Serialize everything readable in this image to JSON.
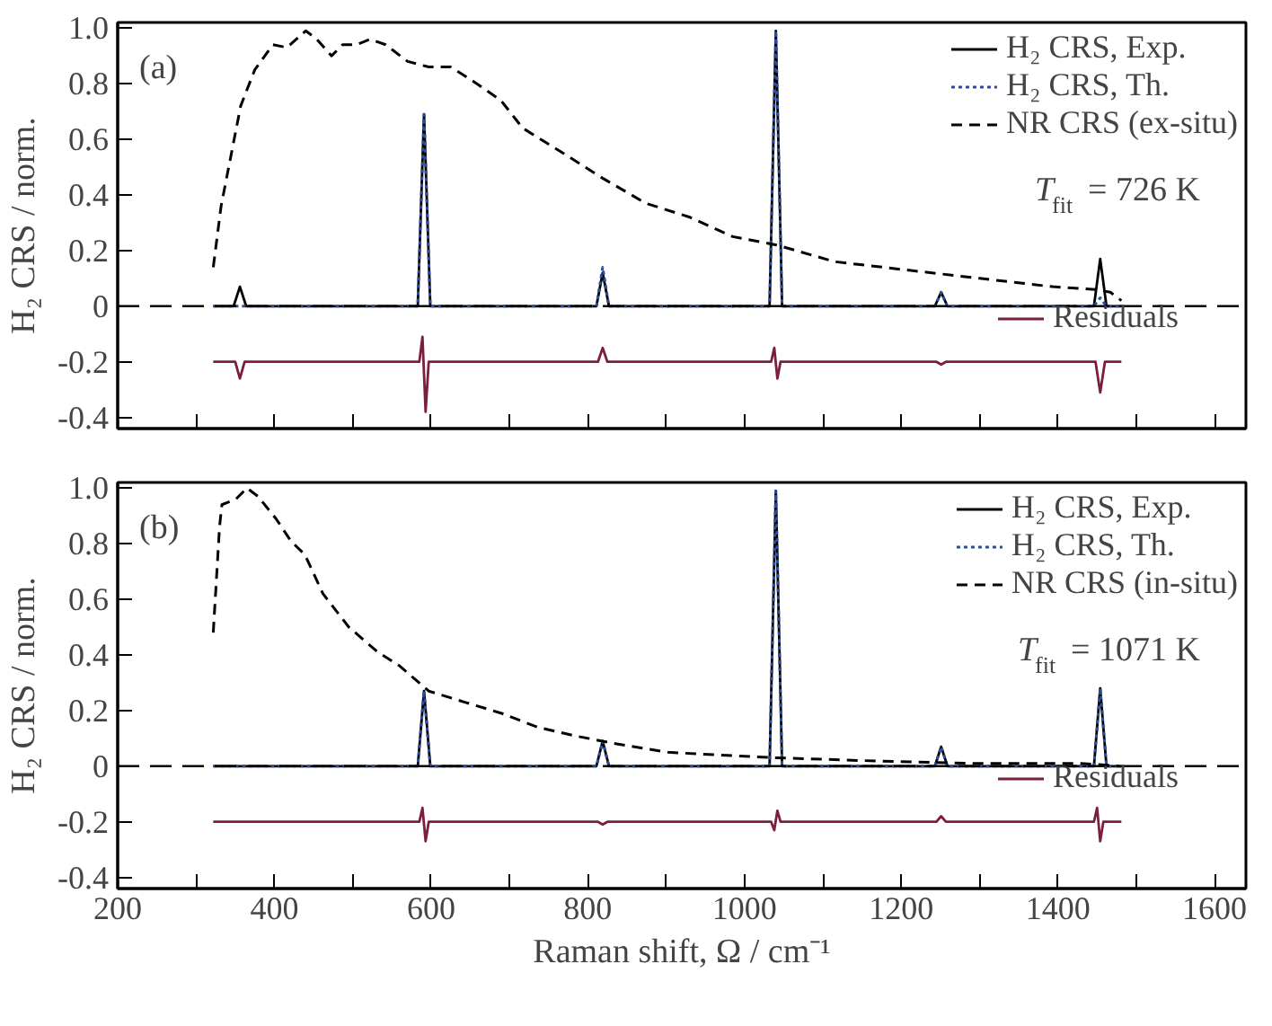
{
  "chart_data": [
    {
      "type": "line",
      "ylabel": "H₂ CRS / norm.",
      "xlim": [
        200,
        1640
      ],
      "ylim": [
        -0.44,
        1.02
      ],
      "tick_labels": "y",
      "legend": "top right",
      "grid": false,
      "xticks": [
        200,
        {
          "value": 300,
          "label": null
        },
        400,
        {
          "value": 500,
          "label": null
        },
        600,
        {
          "value": 700,
          "label": null
        },
        800,
        {
          "value": 900,
          "label": null
        },
        1000,
        {
          "value": 1100,
          "label": null
        },
        1200,
        {
          "value": 1300,
          "label": null
        },
        1400,
        {
          "value": 1500,
          "label": null
        },
        1600
      ],
      "yticks": [
        {
          "value": 1,
          "label": "1.0"
        },
        0.8,
        0.6,
        0.4,
        0.2,
        0,
        -0.2,
        -0.4
      ],
      "annotations": [
        "(a)",
        "T$_{fit}$ = 726 K"
      ],
      "ref_lines": [
        {
          "axis": "y",
          "value": 0,
          "color": "#000000",
          "line_style": "dashed"
        }
      ],
      "series": [
        {
          "name": "H₂ CRS, Exp.",
          "color": "#000000",
          "line_style": "solid",
          "x": [
            322,
            348,
            356,
            364,
            583,
            591,
            599,
            811,
            819,
            827,
            1032,
            1040,
            1048,
            1243,
            1251,
            1259,
            1446,
            1454,
            1462,
            1481
          ],
          "values": [
            0,
            0,
            0.07,
            0,
            0,
            0.69,
            0,
            0,
            0.12,
            0,
            0,
            0.99,
            0,
            0,
            0.05,
            0,
            0,
            0.17,
            0,
            0
          ]
        },
        {
          "name": "H₂ CRS, Th.",
          "color": "#2a4d9c",
          "line_style": "dotted",
          "x": [
            322,
            348,
            356,
            364,
            583,
            591,
            599,
            811,
            819,
            827,
            1032,
            1040,
            1048,
            1243,
            1251,
            1259,
            1446,
            1454,
            1462,
            1481
          ],
          "values": [
            0,
            0,
            0,
            0,
            0,
            0.69,
            0,
            0,
            0.14,
            0,
            0,
            0.99,
            0,
            0,
            0.05,
            0,
            0,
            0.03,
            0,
            0
          ]
        },
        {
          "name": "NR CRS (ex-situ)",
          "color": "#000000",
          "line_style": "dashed",
          "x": [
            322,
            332,
            357,
            375,
            398,
            416,
            440,
            454,
            473,
            487,
            505,
            522,
            542,
            570,
            597,
            625,
            653,
            689,
            717,
            763,
            819,
            874,
            930,
            985,
            1041,
            1115,
            1207,
            1300,
            1393,
            1448,
            1467,
            1481
          ],
          "values": [
            0.14,
            0.36,
            0.72,
            0.85,
            0.94,
            0.93,
            0.99,
            0.96,
            0.9,
            0.94,
            0.94,
            0.96,
            0.94,
            0.88,
            0.86,
            0.86,
            0.81,
            0.74,
            0.64,
            0.56,
            0.46,
            0.37,
            0.32,
            0.25,
            0.22,
            0.16,
            0.13,
            0.1,
            0.07,
            0.06,
            0.05,
            0.02
          ]
        },
        {
          "name": "Residuals",
          "color": "#7b1f3a",
          "line_style": "solid",
          "x": [
            322,
            350,
            356,
            362,
            585,
            589,
            593,
            597,
            813,
            819,
            825,
            1034,
            1038,
            1042,
            1046,
            1245,
            1251,
            1257,
            1448,
            1454,
            1460,
            1481
          ],
          "values": [
            -0.2,
            -0.2,
            -0.26,
            -0.2,
            -0.2,
            -0.11,
            -0.38,
            -0.2,
            -0.2,
            -0.15,
            -0.2,
            -0.2,
            -0.15,
            -0.26,
            -0.2,
            -0.2,
            -0.21,
            -0.2,
            -0.2,
            -0.31,
            -0.2,
            -0.2
          ]
        }
      ]
    },
    {
      "type": "line",
      "xlabel": "Raman shift, Ω / cm⁻¹",
      "ylabel": "H₂ CRS / norm.",
      "xlim": [
        200,
        1640
      ],
      "ylim": [
        -0.44,
        1.02
      ],
      "legend": "top right",
      "grid": false,
      "xticks": [
        200,
        {
          "value": 300,
          "label": null
        },
        400,
        {
          "value": 500,
          "label": null
        },
        600,
        {
          "value": 700,
          "label": null
        },
        800,
        {
          "value": 900,
          "label": null
        },
        1000,
        {
          "value": 1100,
          "label": null
        },
        1200,
        {
          "value": 1300,
          "label": null
        },
        1400,
        {
          "value": 1500,
          "label": null
        },
        1600
      ],
      "yticks": [
        {
          "value": 1,
          "label": "1.0"
        },
        0.8,
        0.6,
        0.4,
        0.2,
        0,
        -0.2,
        -0.4
      ],
      "annotations": [
        "(b)",
        "T$_{fit}$ = 1071 K"
      ],
      "ref_lines": [
        {
          "axis": "y",
          "value": 0,
          "color": "#000000",
          "line_style": "dashed"
        }
      ],
      "series": [
        {
          "name": "H₂ CRS, Exp.",
          "color": "#000000",
          "line_style": "solid",
          "x": [
            322,
            348,
            356,
            364,
            583,
            591,
            599,
            811,
            819,
            827,
            1032,
            1040,
            1048,
            1243,
            1251,
            1259,
            1446,
            1454,
            1462,
            1481
          ],
          "values": [
            0,
            0,
            0,
            0,
            0,
            0.27,
            0,
            0,
            0.09,
            0,
            0,
            0.99,
            0,
            0,
            0.07,
            0,
            0,
            0.28,
            0,
            0
          ]
        },
        {
          "name": "H₂ CRS, Th.",
          "color": "#2a4d9c",
          "line_style": "dotted",
          "x": [
            322,
            348,
            356,
            364,
            583,
            591,
            599,
            811,
            819,
            827,
            1032,
            1040,
            1048,
            1243,
            1251,
            1259,
            1446,
            1454,
            1462,
            1481
          ],
          "values": [
            0,
            0,
            0,
            0,
            0,
            0.27,
            0,
            0,
            0.09,
            0,
            0,
            0.99,
            0,
            0,
            0.07,
            0,
            0,
            0.28,
            0,
            0
          ]
        },
        {
          "name": "NR CRS (in-situ)",
          "color": "#000000",
          "line_style": "dashed",
          "x": [
            322,
            330,
            333,
            351,
            365,
            379,
            402,
            421,
            439,
            462,
            495,
            532,
            560,
            597,
            643,
            690,
            736,
            782,
            837,
            902,
            967,
            1041,
            1152,
            1290,
            1429,
            1481
          ],
          "values": [
            0.48,
            0.86,
            0.94,
            0.96,
            1.0,
            0.97,
            0.89,
            0.81,
            0.76,
            0.62,
            0.5,
            0.41,
            0.36,
            0.27,
            0.23,
            0.19,
            0.14,
            0.11,
            0.08,
            0.05,
            0.04,
            0.03,
            0.02,
            0.01,
            0.01,
            0
          ]
        },
        {
          "name": "Residuals",
          "color": "#7b1f3a",
          "line_style": "solid",
          "x": [
            322,
            585,
            589,
            593,
            597,
            813,
            819,
            825,
            1034,
            1038,
            1042,
            1046,
            1245,
            1251,
            1257,
            1446,
            1450,
            1454,
            1458,
            1481
          ],
          "values": [
            -0.2,
            -0.2,
            -0.15,
            -0.27,
            -0.2,
            -0.2,
            -0.21,
            -0.2,
            -0.2,
            -0.23,
            -0.16,
            -0.2,
            -0.2,
            -0.18,
            -0.2,
            -0.2,
            -0.15,
            -0.27,
            -0.2,
            -0.2
          ]
        }
      ]
    }
  ]
}
